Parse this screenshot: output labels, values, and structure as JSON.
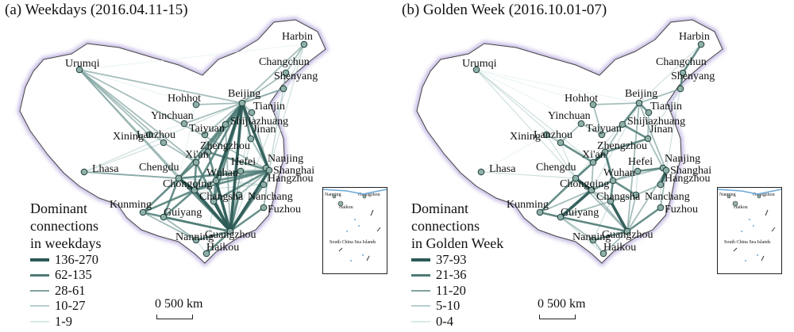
{
  "panels": [
    {
      "title": "(a) Weekdays (2016.04.11-15)",
      "legend_title": [
        "Dominant",
        "connections",
        "in weekdays"
      ],
      "legend": [
        {
          "label": "136-270",
          "color": "#2b5a55"
        },
        {
          "label": "62-135",
          "color": "#4d7b76"
        },
        {
          "label": "28-61",
          "color": "#7fa3a0"
        },
        {
          "label": "10-27",
          "color": "#b3cfcd"
        },
        {
          "label": "1-9",
          "color": "#d8eae9"
        }
      ],
      "scalebar": "0  500 km",
      "inset": {
        "guangzhou": "Guangzhou",
        "nanning": "Nanning",
        "haikou": "Haikou",
        "islands": "South China Sea Islands"
      }
    },
    {
      "title": "(b) Golden Week (2016.10.01-07)",
      "legend_title": [
        "Dominant",
        "connections",
        "in Golden Week"
      ],
      "legend": [
        {
          "label": "37-93",
          "color": "#2b5a55"
        },
        {
          "label": "21-36",
          "color": "#4d7b76"
        },
        {
          "label": "11-20",
          "color": "#7fa3a0"
        },
        {
          "label": "5-10",
          "color": "#b3cfcd"
        },
        {
          "label": "0-4",
          "color": "#d8eae9"
        }
      ],
      "scalebar": "0  500 km",
      "inset": {
        "guangzhou": "Guangzhou",
        "nanning": "Nanning",
        "haikou": "Haikou",
        "islands": "South China Sea Islands"
      }
    }
  ],
  "cities": [
    "Harbin",
    "Changchun",
    "Shenyang",
    "Urumqi",
    "Hohhot",
    "Beijing",
    "Tianjin",
    "Yinchuan",
    "Taiyuan",
    "Shijiazhuang",
    "Xining",
    "Lanzhou",
    "Jinan",
    "Zhengzhou",
    "Xi'an",
    "Nanjing",
    "Lhasa",
    "Chengdu",
    "Wuhan",
    "Hefei",
    "Shanghai",
    "Hangzhou",
    "Chongqing",
    "Nanchang",
    "Changsha",
    "Kunming",
    "Guiyang",
    "Fuzhou",
    "Nanning",
    "Guangzhou",
    "Haikou"
  ]
}
